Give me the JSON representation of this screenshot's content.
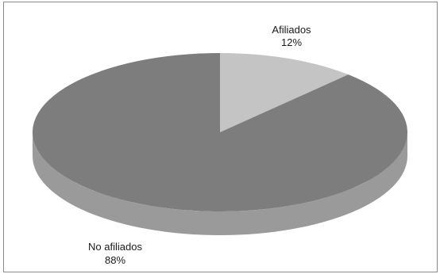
{
  "chart_data": {
    "type": "pie",
    "title": "",
    "slices": [
      {
        "label": "Afiliados",
        "percent_label": "12%",
        "value": 12,
        "color": "#c4c4c4",
        "side_color": "#a4a4a4"
      },
      {
        "label": "No afiliados",
        "percent_label": "88%",
        "value": 88,
        "color": "#7d7d7d",
        "side_color": "#9a9a9a"
      }
    ],
    "style": "3d",
    "legend": "none"
  }
}
